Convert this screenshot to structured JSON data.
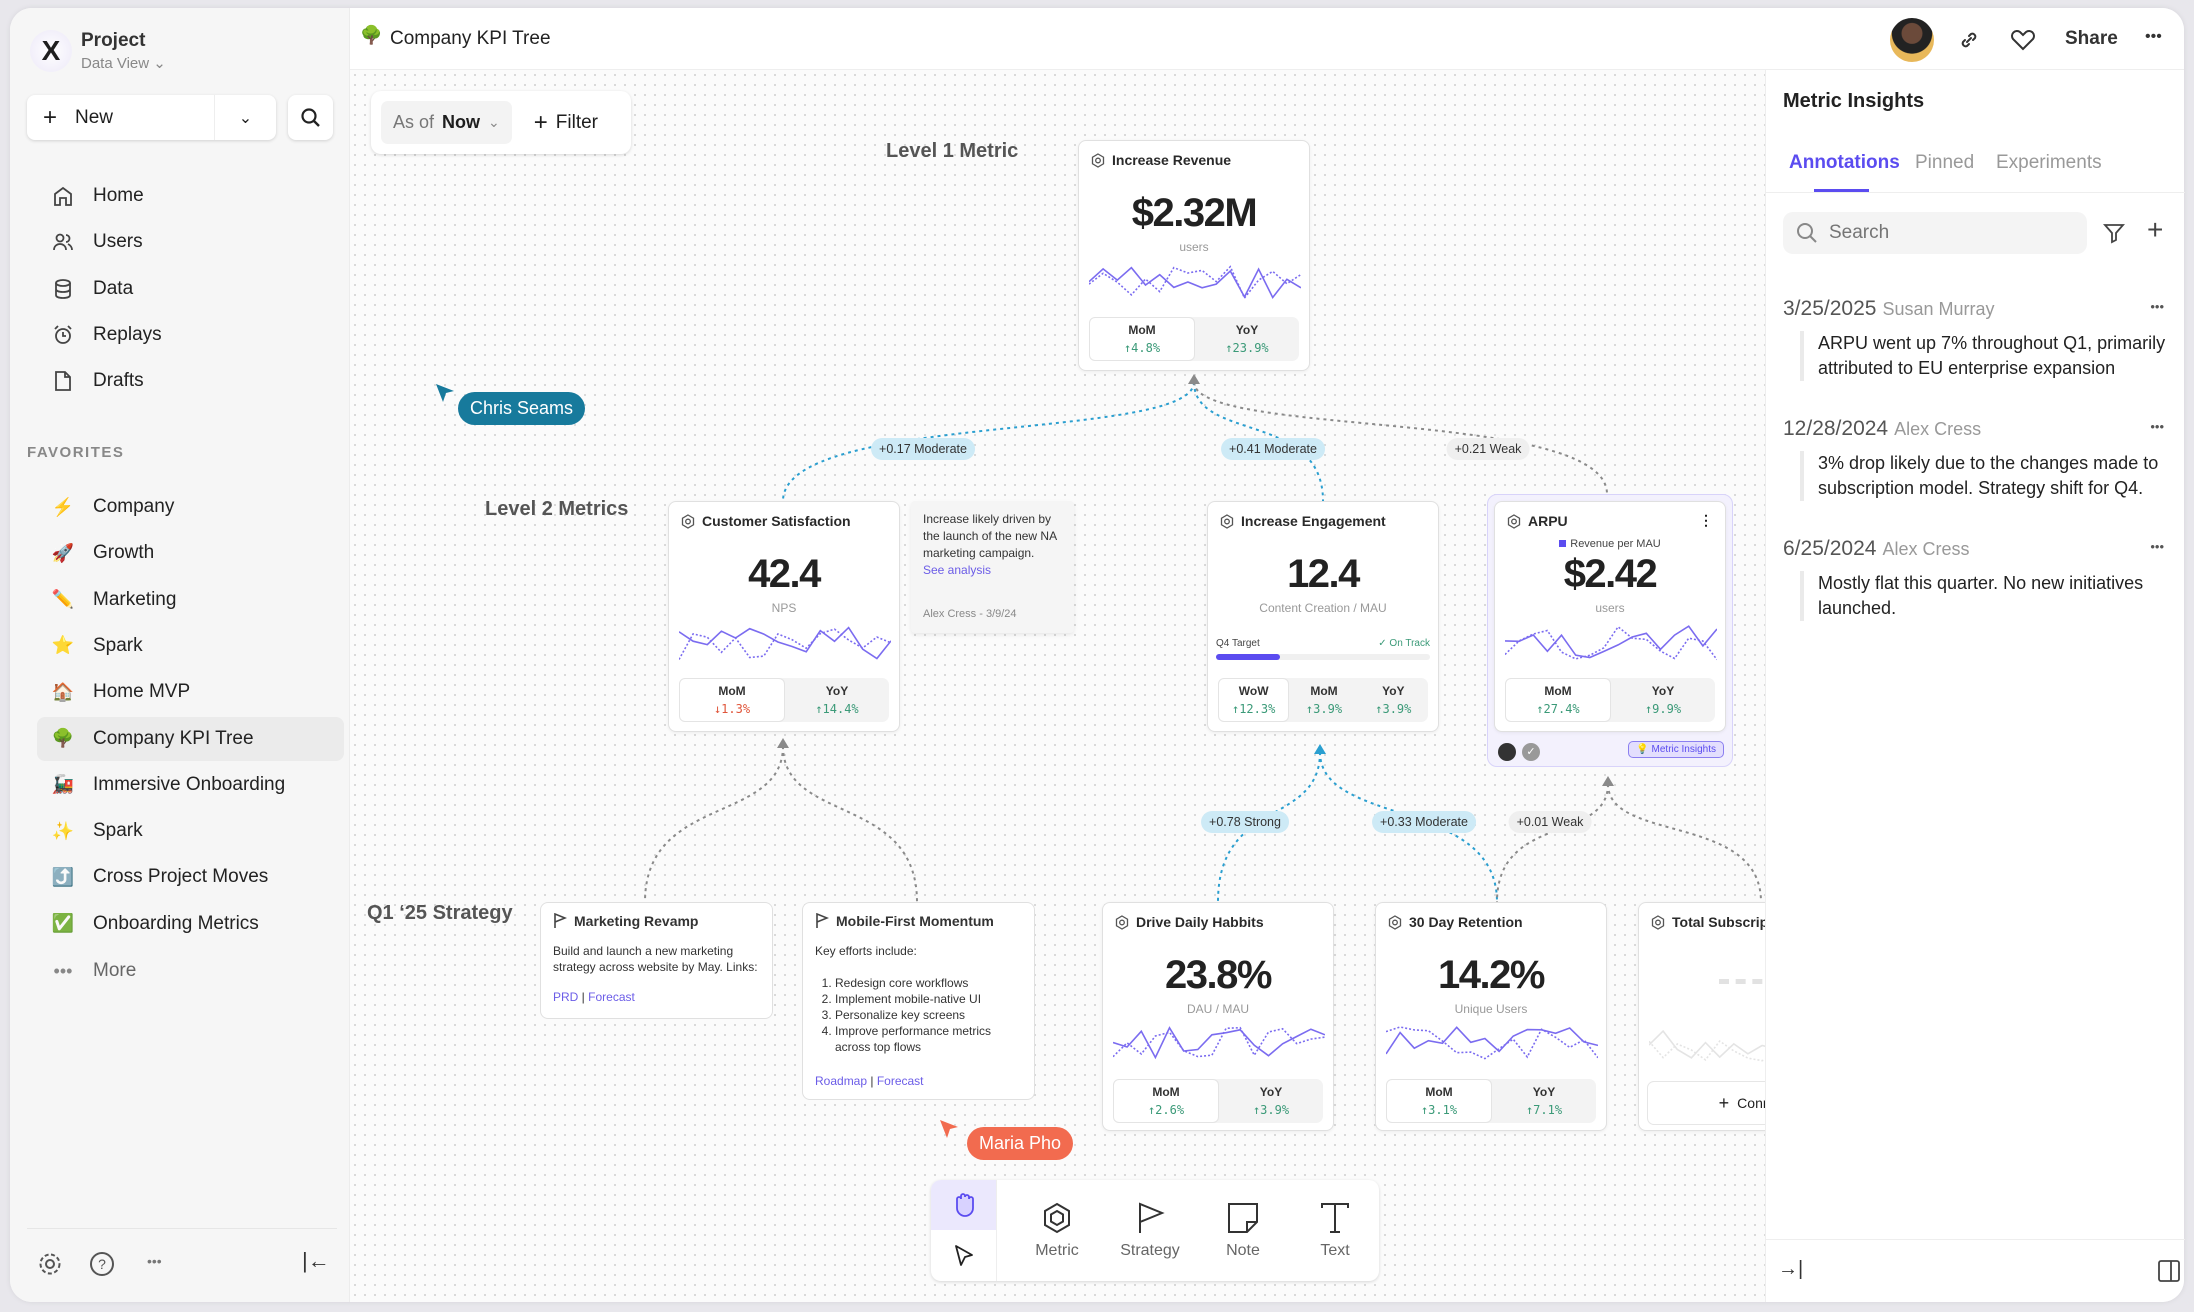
{
  "app": {
    "project": "Project",
    "view": "Data View",
    "page_title": "Company KPI Tree"
  },
  "sidebar": {
    "new_label": "New",
    "nav": [
      {
        "label": "Home",
        "icon": "home-icon"
      },
      {
        "label": "Users",
        "icon": "users-icon"
      },
      {
        "label": "Data",
        "icon": "database-icon"
      },
      {
        "label": "Replays",
        "icon": "alarm-clock-icon"
      },
      {
        "label": "Drafts",
        "icon": "file-icon"
      }
    ],
    "favorites_heading": "FAVORITES",
    "favorites": [
      {
        "label": "Company",
        "icon": "⚡"
      },
      {
        "label": "Growth",
        "icon": "🚀"
      },
      {
        "label": "Marketing",
        "icon": "✏️"
      },
      {
        "label": "Spark",
        "icon": "⭐"
      },
      {
        "label": "Home MVP",
        "icon": "🏠"
      },
      {
        "label": "Company KPI Tree",
        "icon": "🌳",
        "selected": true
      },
      {
        "label": "Immersive Onboarding",
        "icon": "🚂"
      },
      {
        "label": "Spark",
        "icon": "✨"
      },
      {
        "label": "Cross Project Moves",
        "icon": "⤴️"
      },
      {
        "label": "Onboarding Metrics",
        "icon": "✅"
      }
    ],
    "more": "More"
  },
  "header": {
    "share": "Share"
  },
  "canvas": {
    "as_of_label": "As of",
    "as_of_value": "Now",
    "filter": "Filter",
    "levels": {
      "l1": "Level 1 Metric",
      "l2": "Level 2 Metrics",
      "strategy": "Q1 ‘25 Strategy"
    },
    "metrics": {
      "revenue": {
        "title": "Increase Revenue",
        "value": "$2.32M",
        "unit": "users",
        "stats": [
          {
            "label": "MoM",
            "value": "↑4.8%",
            "dir": "up"
          },
          {
            "label": "YoY",
            "value": "↑23.9%",
            "dir": "up"
          }
        ]
      },
      "csat": {
        "title": "Customer Satisfaction",
        "value": "42.4",
        "unit": "NPS",
        "stats": [
          {
            "label": "MoM",
            "value": "↓1.3%",
            "dir": "down"
          },
          {
            "label": "YoY",
            "value": "↑14.4%",
            "dir": "up"
          }
        ]
      },
      "engagement": {
        "title": "Increase Engagement",
        "value": "12.4",
        "unit": "Content Creation / MAU",
        "target": {
          "label": "Q4 Target",
          "status": "✓ On Track",
          "progress": 0.3
        },
        "stats": [
          {
            "label": "WoW",
            "value": "↑12.3%",
            "dir": "up"
          },
          {
            "label": "MoM",
            "value": "↑3.9%",
            "dir": "up"
          },
          {
            "label": "YoY",
            "value": "↑3.9%",
            "dir": "up"
          }
        ]
      },
      "arpu": {
        "title": "ARPU",
        "legend": "Revenue per MAU",
        "value": "$2.42",
        "unit": "users",
        "badge": "Metric Insights",
        "stats": [
          {
            "label": "MoM",
            "value": "↑27.4%",
            "dir": "up"
          },
          {
            "label": "YoY",
            "value": "↑9.9%",
            "dir": "up"
          }
        ]
      },
      "daily": {
        "title": "Drive Daily Habbits",
        "value": "23.8%",
        "unit": "DAU / MAU",
        "stats": [
          {
            "label": "MoM",
            "value": "↑2.6%",
            "dir": "up"
          },
          {
            "label": "YoY",
            "value": "↑3.9%",
            "dir": "up"
          }
        ]
      },
      "retention": {
        "title": "30 Day Retention",
        "value": "14.2%",
        "unit": "Unique Users",
        "stats": [
          {
            "label": "MoM",
            "value": "↑3.1%",
            "dir": "up"
          },
          {
            "label": "YoY",
            "value": "↑7.1%",
            "dir": "up"
          }
        ]
      },
      "subs": {
        "title": "Total Subscriptions",
        "connect": "Connect"
      }
    },
    "note": {
      "text": "Increase likely driven by the launch of the new NA marketing campaign.",
      "link": "See analysis",
      "footer": "Alex Cress - 3/9/24"
    },
    "strategies": {
      "marketing": {
        "title": "Marketing Revamp",
        "body": "Build and launch a new marketing strategy across website by May. Links:",
        "links": [
          "PRD",
          "Forecast"
        ]
      },
      "mobile": {
        "title": "Mobile-First Momentum",
        "body": "Key efforts include:",
        "items": [
          "Redesign core workflows",
          "Implement mobile-native UI",
          "Personalize key screens",
          "Improve performance metrics across top flows"
        ],
        "links": [
          "Roadmap",
          "Forecast"
        ]
      }
    },
    "connectors": {
      "rev_csat": {
        "label": "+0.17 Moderate",
        "strength": "moderate"
      },
      "rev_eng": {
        "label": "+0.41 Moderate",
        "strength": "moderate"
      },
      "rev_arpu": {
        "label": "+0.21 Weak",
        "strength": "weak"
      },
      "eng_daily": {
        "label": "+0.78 Strong",
        "strength": "strong"
      },
      "eng_ret": {
        "label": "+0.33 Moderate",
        "strength": "moderate"
      },
      "arpu_ret": {
        "label": "+0.01 Weak",
        "strength": "weak"
      }
    },
    "cursors": {
      "chris": "Chris Seams",
      "maria": "Maria Pho"
    }
  },
  "toolbar": {
    "metric": "Metric",
    "strategy": "Strategy",
    "note": "Note",
    "text": "Text"
  },
  "insights": {
    "title": "Metric Insights",
    "tabs": [
      "Annotations",
      "Pinned",
      "Experiments"
    ],
    "active_tab": "Annotations",
    "search_placeholder": "Search",
    "annotations": [
      {
        "date": "3/25/2025",
        "author": "Susan Murray",
        "text": "ARPU went up 7% throughout Q1, primarily attributed to EU enterprise expansion"
      },
      {
        "date": "12/28/2024",
        "author": "Alex Cress",
        "text": "3% drop likely due to the changes made to subscription model. Strategy shift for Q4."
      },
      {
        "date": "6/25/2024",
        "author": "Alex Cress",
        "text": "Mostly flat this quarter. No new initiatives launched."
      }
    ]
  },
  "colors": {
    "accent": "#5b4cf0",
    "spark": "#7b6cf0",
    "up": "#3b9a78",
    "down": "#e0553a",
    "link": "#6b5ce7",
    "connector_blue": "#2a9fd0",
    "connector_gray": "#8a8a8a",
    "chris": "#177a9c",
    "maria": "#f26b4f"
  }
}
